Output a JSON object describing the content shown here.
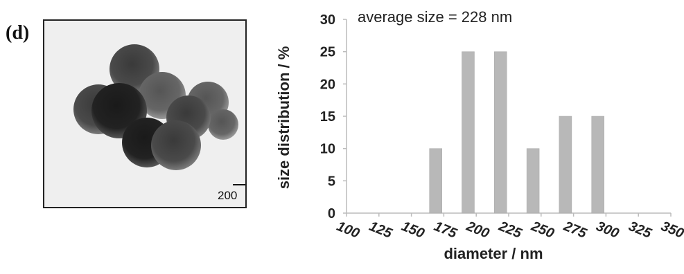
{
  "panel_label": "(d)",
  "image": {
    "scale_bar_label": "200 nm"
  },
  "chart_data": {
    "type": "bar",
    "title": "",
    "annotation": "average size = 228 nm",
    "xlabel": "diameter / nm",
    "ylabel": "size distribution / %",
    "x_ticks": [
      "100",
      "125",
      "150",
      "175",
      "200",
      "225",
      "250",
      "275",
      "300",
      "325",
      "350"
    ],
    "y_ticks": [
      "0",
      "5",
      "10",
      "15",
      "20",
      "25",
      "30"
    ],
    "ylim": [
      0,
      30
    ],
    "xlim": [
      100,
      350
    ],
    "categories": [
      "175",
      "200",
      "225",
      "250",
      "275",
      "300"
    ],
    "bins": [
      175,
      200,
      225,
      250,
      275,
      300
    ],
    "values": [
      10,
      25,
      25,
      10,
      15,
      15
    ],
    "bar_color": "#b8b8b8",
    "grid": false,
    "legend": "none"
  }
}
